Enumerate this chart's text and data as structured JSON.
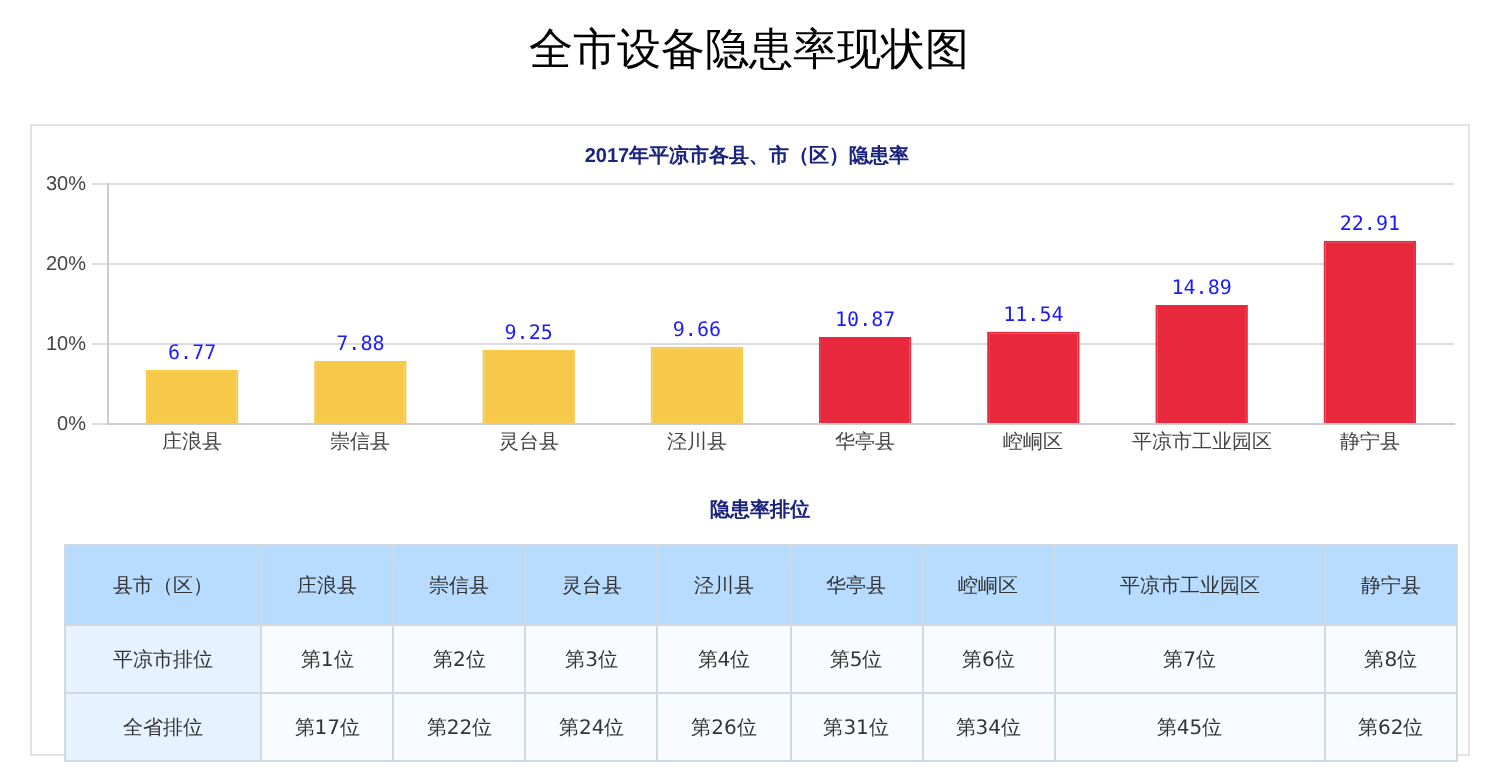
{
  "chart_data": [
    {
      "type": "bar",
      "title": "全市设备隐患率现状图",
      "subtitle": "2017年平凉市各县、市（区）隐患率",
      "categories": [
        "庄浪县",
        "崇信县",
        "灵台县",
        "泾川县",
        "华亭县",
        "崆峒区",
        "平凉市工业园区",
        "静宁县"
      ],
      "values": [
        6.77,
        7.88,
        9.25,
        9.66,
        10.87,
        11.54,
        14.89,
        22.91
      ],
      "colors": [
        "#f7c948",
        "#f7c948",
        "#f7c948",
        "#f7c948",
        "#e8283c",
        "#e8283c",
        "#e8283c",
        "#e8283c"
      ],
      "ylim": [
        0,
        30
      ],
      "yticks": [
        {
          "value": 0,
          "label": "0%"
        },
        {
          "value": 10,
          "label": "10%"
        },
        {
          "value": 20,
          "label": "20%"
        },
        {
          "value": 30,
          "label": "30%"
        }
      ],
      "grid": "y",
      "legend": false,
      "data_labels": true
    },
    {
      "type": "other",
      "title": "隐患率排位",
      "categories": [
        "县市（区）",
        "庄浪县",
        "崇信县",
        "灵台县",
        "泾川县",
        "华亭县",
        "崆峒区",
        "平凉市工业园区",
        "静宁县"
      ],
      "annotations": [
        "平凉市排位",
        "第1位",
        "第2位",
        "第3位",
        "第4位",
        "第5位",
        "第6位",
        "第7位",
        "第8位",
        "全省排位",
        "第17位",
        "第22位",
        "第24位",
        "第26位",
        "第31位",
        "第34位",
        "第45位",
        "第62位"
      ]
    }
  ]
}
